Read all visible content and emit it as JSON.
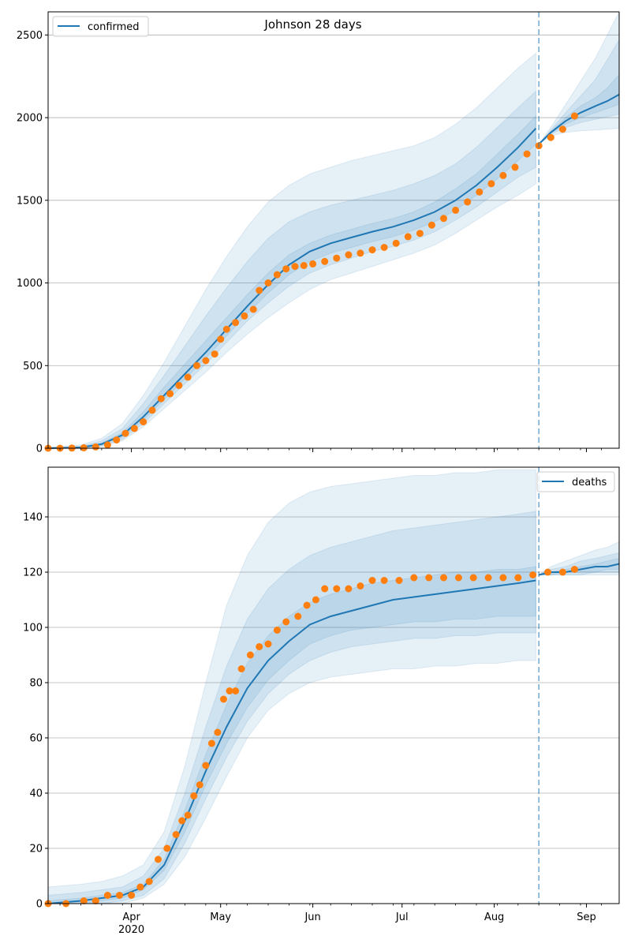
{
  "chart_data": [
    {
      "type": "line",
      "title": "Johnson 28 days",
      "legend": {
        "label": "confirmed",
        "placement": "top-left"
      },
      "grid": "y",
      "xlim": [
        "2020-03-04",
        "2020-09-12"
      ],
      "ylim": [
        0,
        2640
      ],
      "yticks": [
        0,
        500,
        1000,
        1500,
        2000,
        2500
      ],
      "xticks": [
        {
          "date": "2020-04-01",
          "label": "Apr",
          "sublabel": "2020"
        },
        {
          "date": "2020-05-01",
          "label": "May",
          "sublabel": ""
        },
        {
          "date": "2020-06-01",
          "label": "Jun",
          "sublabel": ""
        },
        {
          "date": "2020-07-01",
          "label": "Jul",
          "sublabel": ""
        },
        {
          "date": "2020-08-01",
          "label": "Aug",
          "sublabel": ""
        },
        {
          "date": "2020-09-01",
          "label": "Sep",
          "sublabel": ""
        }
      ],
      "forecast_start": "2020-08-16",
      "colors": {
        "model": "#1f77b4",
        "observed": "#ff7f0e",
        "band": "#1f77b4"
      },
      "model_fit": {
        "x": [
          "2020-03-04",
          "2020-03-15",
          "2020-03-22",
          "2020-03-29",
          "2020-04-05",
          "2020-04-12",
          "2020-04-19",
          "2020-04-26",
          "2020-05-03",
          "2020-05-10",
          "2020-05-17",
          "2020-05-24",
          "2020-05-31",
          "2020-06-07",
          "2020-06-14",
          "2020-06-21",
          "2020-06-28",
          "2020-07-05",
          "2020-07-12",
          "2020-07-19",
          "2020-07-26",
          "2020-08-02",
          "2020-08-09",
          "2020-08-15"
        ],
        "y": [
          0,
          5,
          25,
          80,
          190,
          320,
          450,
          580,
          720,
          860,
          990,
          1110,
          1190,
          1240,
          1275,
          1310,
          1340,
          1380,
          1430,
          1500,
          1590,
          1700,
          1820,
          1935
        ],
        "bands": [
          {
            "level": "outer",
            "lower": [
              0,
              0,
              10,
              45,
              130,
              240,
              350,
              460,
              580,
              690,
              790,
              880,
              960,
              1020,
              1060,
              1100,
              1140,
              1180,
              1230,
              1300,
              1380,
              1460,
              1530,
              1600
            ],
            "upper": [
              5,
              20,
              60,
              150,
              320,
              520,
              740,
              960,
              1160,
              1340,
              1490,
              1590,
              1660,
              1700,
              1740,
              1770,
              1800,
              1830,
              1880,
              1960,
              2060,
              2180,
              2300,
              2390
            ]
          },
          {
            "level": "middle",
            "lower": [
              0,
              1,
              15,
              55,
              150,
              270,
              390,
              510,
              640,
              770,
              880,
              980,
              1060,
              1110,
              1150,
              1190,
              1220,
              1260,
              1310,
              1380,
              1460,
              1550,
              1640,
              1700
            ],
            "upper": [
              3,
              12,
              45,
              120,
              270,
              440,
              620,
              800,
              970,
              1130,
              1270,
              1370,
              1430,
              1470,
              1500,
              1530,
              1560,
              1600,
              1650,
              1720,
              1820,
              1940,
              2060,
              2160
            ]
          },
          {
            "level": "inner",
            "lower": [
              0,
              3,
              20,
              68,
              170,
              295,
              420,
              545,
              680,
              815,
              940,
              1050,
              1130,
              1180,
              1215,
              1250,
              1280,
              1320,
              1370,
              1440,
              1530,
              1630,
              1740,
              1840
            ],
            "upper": [
              1,
              8,
              32,
              95,
              220,
              370,
              510,
              650,
              790,
              930,
              1060,
              1170,
              1240,
              1290,
              1325,
              1360,
              1390,
              1430,
              1490,
              1570,
              1660,
              1780,
              1900,
              2010
            ]
          }
        ]
      },
      "forecast": {
        "x": [
          "2020-08-16",
          "2020-08-20",
          "2020-08-25",
          "2020-08-30",
          "2020-09-04",
          "2020-09-08",
          "2020-09-12"
        ],
        "y": [
          1840,
          1910,
          1980,
          2030,
          2070,
          2100,
          2140
        ],
        "bands": [
          {
            "level": "outer",
            "lower": [
              1840,
              1890,
              1910,
              1920,
              1925,
              1930,
              1935
            ],
            "upper": [
              1840,
              1940,
              2080,
              2220,
              2360,
              2500,
              2640
            ]
          },
          {
            "level": "middle",
            "lower": [
              1840,
              1900,
              1940,
              1970,
              1990,
              2005,
              2020
            ],
            "upper": [
              1840,
              1925,
              2030,
              2130,
              2230,
              2350,
              2470
            ]
          },
          {
            "level": "inner",
            "lower": [
              1840,
              1905,
              1960,
              2000,
              2030,
              2055,
              2080
            ],
            "upper": [
              1840,
              1915,
              2000,
              2070,
              2120,
              2180,
              2260
            ]
          }
        ]
      },
      "observed": {
        "x": [
          "2020-03-04",
          "2020-03-08",
          "2020-03-12",
          "2020-03-16",
          "2020-03-20",
          "2020-03-24",
          "2020-03-27",
          "2020-03-30",
          "2020-04-02",
          "2020-04-05",
          "2020-04-08",
          "2020-04-11",
          "2020-04-14",
          "2020-04-17",
          "2020-04-20",
          "2020-04-23",
          "2020-04-26",
          "2020-04-29",
          "2020-05-01",
          "2020-05-03",
          "2020-05-06",
          "2020-05-09",
          "2020-05-12",
          "2020-05-14",
          "2020-05-17",
          "2020-05-20",
          "2020-05-23",
          "2020-05-26",
          "2020-05-29",
          "2020-06-01",
          "2020-06-05",
          "2020-06-09",
          "2020-06-13",
          "2020-06-17",
          "2020-06-21",
          "2020-06-25",
          "2020-06-29",
          "2020-07-03",
          "2020-07-07",
          "2020-07-11",
          "2020-07-15",
          "2020-07-19",
          "2020-07-23",
          "2020-07-27",
          "2020-07-31",
          "2020-08-04",
          "2020-08-08",
          "2020-08-12",
          "2020-08-16",
          "2020-08-20",
          "2020-08-24",
          "2020-08-28"
        ],
        "y": [
          0,
          0,
          1,
          3,
          8,
          20,
          50,
          90,
          120,
          160,
          230,
          300,
          330,
          380,
          430,
          500,
          530,
          570,
          660,
          720,
          760,
          800,
          840,
          955,
          1000,
          1050,
          1085,
          1100,
          1105,
          1115,
          1130,
          1150,
          1170,
          1180,
          1200,
          1215,
          1240,
          1280,
          1300,
          1350,
          1390,
          1440,
          1490,
          1550,
          1600,
          1650,
          1700,
          1780,
          1830,
          1880,
          1930,
          2010
        ]
      }
    },
    {
      "type": "line",
      "title": "",
      "legend": {
        "label": "deaths",
        "placement": "top-right"
      },
      "grid": "y",
      "xlim": [
        "2020-03-04",
        "2020-09-12"
      ],
      "ylim": [
        0,
        158
      ],
      "yticks": [
        0,
        20,
        40,
        60,
        80,
        100,
        120,
        140
      ],
      "xticks": [
        {
          "date": "2020-04-01",
          "label": "Apr",
          "sublabel": "2020"
        },
        {
          "date": "2020-05-01",
          "label": "May",
          "sublabel": ""
        },
        {
          "date": "2020-06-01",
          "label": "Jun",
          "sublabel": ""
        },
        {
          "date": "2020-07-01",
          "label": "Jul",
          "sublabel": ""
        },
        {
          "date": "2020-08-01",
          "label": "Aug",
          "sublabel": ""
        },
        {
          "date": "2020-09-01",
          "label": "Sep",
          "sublabel": ""
        }
      ],
      "forecast_start": "2020-08-16",
      "colors": {
        "model": "#1f77b4",
        "observed": "#ff7f0e",
        "band": "#1f77b4"
      },
      "model_fit": {
        "x": [
          "2020-03-04",
          "2020-03-15",
          "2020-03-22",
          "2020-03-29",
          "2020-04-05",
          "2020-04-12",
          "2020-04-19",
          "2020-04-26",
          "2020-05-03",
          "2020-05-10",
          "2020-05-17",
          "2020-05-24",
          "2020-05-31",
          "2020-06-07",
          "2020-06-14",
          "2020-06-21",
          "2020-06-28",
          "2020-07-05",
          "2020-07-12",
          "2020-07-19",
          "2020-07-26",
          "2020-08-02",
          "2020-08-09",
          "2020-08-15"
        ],
        "y": [
          0,
          1,
          2,
          3,
          6,
          14,
          30,
          48,
          64,
          78,
          88,
          95,
          101,
          104,
          106,
          108,
          110,
          111,
          112,
          113,
          114,
          115,
          116,
          117
        ],
        "bands": [
          {
            "level": "outer",
            "lower": [
              0,
              0,
              0,
              0,
              2,
              7,
              17,
              31,
              46,
              60,
              70,
              76,
              80,
              82,
              83,
              84,
              85,
              85,
              86,
              86,
              87,
              87,
              88,
              88
            ],
            "upper": [
              6,
              7,
              8,
              10,
              14,
              26,
              50,
              80,
              108,
              126,
              138,
              145,
              149,
              151,
              152,
              153,
              154,
              155,
              155,
              156,
              156,
              157,
              157,
              157
            ]
          },
          {
            "level": "middle",
            "lower": [
              0,
              0,
              0,
              1,
              3,
              9,
              22,
              38,
              53,
              66,
              76,
              83,
              88,
              91,
              93,
              94,
              95,
              96,
              96,
              97,
              97,
              98,
              98,
              98
            ],
            "upper": [
              3,
              4,
              5,
              6,
              10,
              20,
              40,
              64,
              86,
              103,
              114,
              121,
              126,
              129,
              131,
              133,
              135,
              136,
              137,
              138,
              139,
              140,
              141,
              142
            ]
          },
          {
            "level": "inner",
            "lower": [
              0,
              0,
              1,
              2,
              5,
              12,
              26,
              43,
              58,
              71,
              81,
              88,
              94,
              97,
              99,
              100,
              101,
              102,
              102,
              103,
              103,
              104,
              104,
              104
            ],
            "upper": [
              1,
              2,
              3,
              4,
              7,
              16,
              34,
              54,
              72,
              87,
              97,
              104,
              109,
              112,
              114,
              116,
              117,
              118,
              119,
              120,
              120,
              121,
              121,
              122
            ]
          }
        ]
      },
      "forecast": {
        "x": [
          "2020-08-16",
          "2020-08-20",
          "2020-08-25",
          "2020-08-30",
          "2020-09-04",
          "2020-09-08",
          "2020-09-12"
        ],
        "y": [
          119,
          120,
          120,
          121,
          122,
          122,
          123
        ],
        "bands": [
          {
            "level": "outer",
            "lower": [
              119,
              119,
              119,
              119,
              119,
              119,
              119
            ],
            "upper": [
              119,
              122,
              124,
              126,
              128,
              129,
              131
            ]
          },
          {
            "level": "middle",
            "lower": [
              119,
              119,
              119,
              119,
              120,
              120,
              120
            ],
            "upper": [
              119,
              121,
              122,
              124,
              125,
              126,
              127
            ]
          },
          {
            "level": "inner",
            "lower": [
              119,
              119,
              120,
              120,
              120,
              121,
              121
            ],
            "upper": [
              119,
              120,
              121,
              122,
              123,
              124,
              125
            ]
          }
        ]
      },
      "observed": {
        "x": [
          "2020-03-04",
          "2020-03-10",
          "2020-03-16",
          "2020-03-20",
          "2020-03-24",
          "2020-03-28",
          "2020-04-01",
          "2020-04-04",
          "2020-04-07",
          "2020-04-10",
          "2020-04-13",
          "2020-04-16",
          "2020-04-18",
          "2020-04-20",
          "2020-04-22",
          "2020-04-24",
          "2020-04-26",
          "2020-04-28",
          "2020-04-30",
          "2020-05-02",
          "2020-05-04",
          "2020-05-06",
          "2020-05-08",
          "2020-05-11",
          "2020-05-14",
          "2020-05-17",
          "2020-05-20",
          "2020-05-23",
          "2020-05-27",
          "2020-05-30",
          "2020-06-02",
          "2020-06-05",
          "2020-06-09",
          "2020-06-13",
          "2020-06-17",
          "2020-06-21",
          "2020-06-25",
          "2020-06-30",
          "2020-07-05",
          "2020-07-10",
          "2020-07-15",
          "2020-07-20",
          "2020-07-25",
          "2020-07-30",
          "2020-08-04",
          "2020-08-09",
          "2020-08-14",
          "2020-08-19",
          "2020-08-24",
          "2020-08-28"
        ],
        "y": [
          0,
          0,
          1,
          1,
          3,
          3,
          3,
          6,
          8,
          16,
          20,
          25,
          30,
          32,
          39,
          43,
          50,
          58,
          62,
          74,
          77,
          77,
          85,
          90,
          93,
          94,
          99,
          102,
          104,
          108,
          110,
          114,
          114,
          114,
          115,
          117,
          117,
          117,
          118,
          118,
          118,
          118,
          118,
          118,
          118,
          118,
          119,
          120,
          120,
          121
        ]
      }
    }
  ]
}
